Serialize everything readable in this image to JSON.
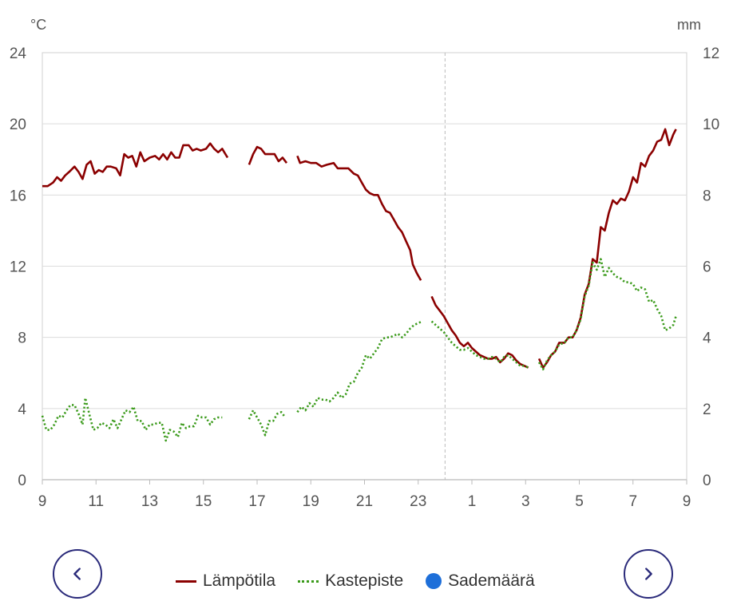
{
  "chart_data": {
    "type": "line",
    "y_left_unit": "°C",
    "y_right_unit": "mm",
    "ylim_left": [
      0,
      24
    ],
    "ylim_right": [
      0,
      12
    ],
    "yticks_left": [
      "0",
      "4",
      "8",
      "12",
      "16",
      "20",
      "24"
    ],
    "yticks_right": [
      "0",
      "2",
      "4",
      "6",
      "8",
      "10",
      "12"
    ],
    "xticks": [
      "9",
      "11",
      "13",
      "15",
      "17",
      "19",
      "21",
      "23",
      "1",
      "3",
      "5",
      "7",
      "9"
    ],
    "xlim": [
      9,
      33
    ],
    "grid": true,
    "legend_position": "bottom",
    "series": [
      {
        "name": "Lämpötila",
        "color": "#8b0000",
        "style": "solid",
        "points": [
          [
            9.0,
            16.5
          ],
          [
            9.2,
            16.5
          ],
          [
            9.4,
            16.7
          ],
          [
            9.55,
            17.0
          ],
          [
            9.7,
            16.8
          ],
          [
            9.85,
            17.1
          ],
          [
            10.0,
            17.3
          ],
          [
            10.2,
            17.6
          ],
          [
            10.35,
            17.3
          ],
          [
            10.5,
            16.9
          ],
          [
            10.65,
            17.7
          ],
          [
            10.8,
            17.9
          ],
          [
            10.95,
            17.2
          ],
          [
            11.1,
            17.4
          ],
          [
            11.25,
            17.3
          ],
          [
            11.4,
            17.6
          ],
          [
            11.55,
            17.6
          ],
          [
            11.75,
            17.5
          ],
          [
            11.9,
            17.1
          ],
          [
            12.05,
            18.3
          ],
          [
            12.2,
            18.1
          ],
          [
            12.35,
            18.2
          ],
          [
            12.5,
            17.6
          ],
          [
            12.65,
            18.4
          ],
          [
            12.8,
            17.9
          ],
          [
            13.0,
            18.1
          ],
          [
            13.2,
            18.2
          ],
          [
            13.35,
            18.0
          ],
          [
            13.5,
            18.3
          ],
          [
            13.65,
            18.0
          ],
          [
            13.8,
            18.4
          ],
          [
            13.95,
            18.1
          ],
          [
            14.1,
            18.1
          ],
          [
            14.25,
            18.8
          ],
          [
            14.45,
            18.8
          ],
          [
            14.6,
            18.5
          ],
          [
            14.75,
            18.6
          ],
          [
            14.9,
            18.5
          ],
          [
            15.1,
            18.6
          ],
          [
            15.25,
            18.9
          ],
          [
            15.4,
            18.6
          ],
          [
            15.55,
            18.4
          ],
          [
            15.7,
            18.6
          ],
          [
            15.9,
            18.1
          ],
          [
            null,
            null
          ],
          [
            16.7,
            17.7
          ],
          [
            16.85,
            18.3
          ],
          [
            17.0,
            18.7
          ],
          [
            17.15,
            18.6
          ],
          [
            17.3,
            18.3
          ],
          [
            17.5,
            18.3
          ],
          [
            17.65,
            18.3
          ],
          [
            17.8,
            17.9
          ],
          [
            17.95,
            18.1
          ],
          [
            18.1,
            17.8
          ],
          [
            null,
            null
          ],
          [
            18.5,
            18.2
          ],
          [
            18.6,
            17.8
          ],
          [
            18.8,
            17.9
          ],
          [
            19.0,
            17.8
          ],
          [
            19.2,
            17.8
          ],
          [
            19.4,
            17.6
          ],
          [
            19.6,
            17.7
          ],
          [
            19.85,
            17.8
          ],
          [
            20.0,
            17.5
          ],
          [
            20.2,
            17.5
          ],
          [
            20.4,
            17.5
          ],
          [
            20.6,
            17.2
          ],
          [
            20.75,
            17.1
          ],
          [
            20.9,
            16.7
          ],
          [
            21.05,
            16.3
          ],
          [
            21.2,
            16.1
          ],
          [
            21.35,
            16.0
          ],
          [
            21.5,
            16.0
          ],
          [
            21.65,
            15.5
          ],
          [
            21.8,
            15.1
          ],
          [
            21.95,
            15.0
          ],
          [
            22.1,
            14.6
          ],
          [
            22.25,
            14.2
          ],
          [
            22.4,
            13.9
          ],
          [
            22.55,
            13.4
          ],
          [
            22.7,
            12.9
          ],
          [
            22.8,
            12.1
          ],
          [
            22.95,
            11.6
          ],
          [
            23.1,
            11.2
          ],
          [
            null,
            null
          ],
          [
            23.5,
            10.3
          ],
          [
            23.65,
            9.8
          ],
          [
            23.8,
            9.5
          ],
          [
            23.95,
            9.2
          ],
          [
            24.1,
            8.8
          ],
          [
            24.25,
            8.4
          ],
          [
            24.4,
            8.1
          ],
          [
            24.55,
            7.7
          ],
          [
            24.7,
            7.5
          ],
          [
            24.85,
            7.7
          ],
          [
            25.0,
            7.4
          ],
          [
            25.15,
            7.2
          ],
          [
            25.3,
            7.0
          ],
          [
            25.45,
            6.9
          ],
          [
            25.6,
            6.8
          ],
          [
            25.75,
            6.8
          ],
          [
            25.9,
            6.9
          ],
          [
            26.05,
            6.6
          ],
          [
            26.2,
            6.8
          ],
          [
            26.35,
            7.1
          ],
          [
            26.5,
            7.0
          ],
          [
            26.65,
            6.7
          ],
          [
            26.8,
            6.5
          ],
          [
            26.95,
            6.4
          ],
          [
            27.1,
            6.3
          ],
          [
            null,
            null
          ],
          [
            27.5,
            6.8
          ],
          [
            27.65,
            6.3
          ],
          [
            27.8,
            6.6
          ],
          [
            27.95,
            7.0
          ],
          [
            28.1,
            7.2
          ],
          [
            28.25,
            7.7
          ],
          [
            28.45,
            7.7
          ],
          [
            28.6,
            8.0
          ],
          [
            28.75,
            8.0
          ],
          [
            28.9,
            8.4
          ],
          [
            29.05,
            9.1
          ],
          [
            29.2,
            10.4
          ],
          [
            29.35,
            11.0
          ],
          [
            29.5,
            12.4
          ],
          [
            29.65,
            12.2
          ],
          [
            29.8,
            14.2
          ],
          [
            29.95,
            14.0
          ],
          [
            30.1,
            15.0
          ],
          [
            30.25,
            15.7
          ],
          [
            30.4,
            15.5
          ],
          [
            30.55,
            15.8
          ],
          [
            30.7,
            15.7
          ],
          [
            30.85,
            16.2
          ],
          [
            31.0,
            17.0
          ],
          [
            31.15,
            16.7
          ],
          [
            31.3,
            17.8
          ],
          [
            31.45,
            17.6
          ],
          [
            31.6,
            18.2
          ],
          [
            31.75,
            18.5
          ],
          [
            31.9,
            19.0
          ],
          [
            32.05,
            19.1
          ],
          [
            32.2,
            19.7
          ],
          [
            32.35,
            18.8
          ],
          [
            32.5,
            19.4
          ],
          [
            32.6,
            19.7
          ]
        ]
      },
      {
        "name": "Kastepiste",
        "color": "#3a9a1a",
        "style": "dotted",
        "points": [
          [
            9.0,
            3.6
          ],
          [
            9.15,
            2.8
          ],
          [
            9.3,
            2.8
          ],
          [
            9.45,
            3.1
          ],
          [
            9.6,
            3.6
          ],
          [
            9.75,
            3.5
          ],
          [
            9.9,
            3.9
          ],
          [
            10.05,
            4.2
          ],
          [
            10.2,
            4.2
          ],
          [
            10.35,
            3.7
          ],
          [
            10.5,
            3.1
          ],
          [
            10.6,
            4.6
          ],
          [
            10.75,
            3.7
          ],
          [
            10.9,
            2.8
          ],
          [
            11.05,
            2.9
          ],
          [
            11.2,
            3.2
          ],
          [
            11.35,
            3.1
          ],
          [
            11.5,
            2.9
          ],
          [
            11.65,
            3.4
          ],
          [
            11.8,
            2.9
          ],
          [
            11.95,
            3.4
          ],
          [
            12.1,
            3.9
          ],
          [
            12.25,
            3.8
          ],
          [
            12.4,
            4.1
          ],
          [
            12.55,
            3.3
          ],
          [
            12.7,
            3.3
          ],
          [
            12.85,
            2.8
          ],
          [
            13.0,
            3.1
          ],
          [
            13.15,
            3.1
          ],
          [
            13.3,
            3.2
          ],
          [
            13.45,
            3.2
          ],
          [
            13.6,
            2.2
          ],
          [
            13.75,
            2.8
          ],
          [
            13.9,
            2.7
          ],
          [
            14.05,
            2.4
          ],
          [
            14.2,
            3.2
          ],
          [
            14.35,
            2.9
          ],
          [
            14.5,
            3.0
          ],
          [
            14.65,
            3.0
          ],
          [
            14.8,
            3.6
          ],
          [
            14.95,
            3.5
          ],
          [
            15.1,
            3.5
          ],
          [
            15.25,
            3.1
          ],
          [
            15.4,
            3.4
          ],
          [
            15.55,
            3.5
          ],
          [
            15.7,
            3.5
          ],
          [
            null,
            null
          ],
          [
            16.7,
            3.4
          ],
          [
            16.85,
            3.9
          ],
          [
            17.0,
            3.5
          ],
          [
            17.15,
            3.1
          ],
          [
            17.3,
            2.5
          ],
          [
            17.45,
            3.3
          ],
          [
            17.6,
            3.3
          ],
          [
            17.75,
            3.7
          ],
          [
            17.9,
            3.8
          ],
          [
            18.05,
            3.5
          ],
          [
            null,
            null
          ],
          [
            18.5,
            3.8
          ],
          [
            18.65,
            4.1
          ],
          [
            18.8,
            3.9
          ],
          [
            18.95,
            4.3
          ],
          [
            19.1,
            4.1
          ],
          [
            19.25,
            4.6
          ],
          [
            19.4,
            4.5
          ],
          [
            19.55,
            4.5
          ],
          [
            19.7,
            4.4
          ],
          [
            19.85,
            4.6
          ],
          [
            20.0,
            4.9
          ],
          [
            20.15,
            4.6
          ],
          [
            20.3,
            4.8
          ],
          [
            20.45,
            5.4
          ],
          [
            20.6,
            5.5
          ],
          [
            20.75,
            6.0
          ],
          [
            20.9,
            6.3
          ],
          [
            21.05,
            7.0
          ],
          [
            21.2,
            6.8
          ],
          [
            21.35,
            7.1
          ],
          [
            21.5,
            7.4
          ],
          [
            21.65,
            7.9
          ],
          [
            21.8,
            8.0
          ],
          [
            21.95,
            8.0
          ],
          [
            22.1,
            8.1
          ],
          [
            22.25,
            8.2
          ],
          [
            22.4,
            8.0
          ],
          [
            22.55,
            8.2
          ],
          [
            22.7,
            8.5
          ],
          [
            22.85,
            8.7
          ],
          [
            23.0,
            8.8
          ],
          [
            23.15,
            8.9
          ],
          [
            null,
            null
          ],
          [
            23.5,
            8.9
          ],
          [
            23.65,
            8.7
          ],
          [
            23.8,
            8.5
          ],
          [
            23.95,
            8.3
          ],
          [
            24.1,
            8.0
          ],
          [
            24.25,
            7.7
          ],
          [
            24.4,
            7.5
          ],
          [
            24.55,
            7.3
          ],
          [
            24.7,
            7.3
          ],
          [
            24.85,
            7.4
          ],
          [
            25.0,
            7.2
          ],
          [
            25.15,
            7.0
          ],
          [
            25.3,
            6.9
          ],
          [
            25.45,
            6.8
          ],
          [
            25.6,
            6.8
          ],
          [
            25.75,
            6.9
          ],
          [
            25.9,
            6.8
          ],
          [
            26.05,
            6.6
          ],
          [
            26.2,
            6.9
          ],
          [
            26.35,
            7.0
          ],
          [
            26.5,
            6.8
          ],
          [
            26.65,
            6.6
          ],
          [
            26.8,
            6.4
          ],
          [
            26.95,
            6.4
          ],
          [
            27.1,
            6.3
          ],
          [
            null,
            null
          ],
          [
            27.5,
            6.6
          ],
          [
            27.65,
            6.2
          ],
          [
            27.8,
            6.7
          ],
          [
            27.95,
            7.0
          ],
          [
            28.1,
            7.2
          ],
          [
            28.25,
            7.6
          ],
          [
            28.45,
            7.7
          ],
          [
            28.6,
            8.0
          ],
          [
            28.75,
            8.0
          ],
          [
            28.9,
            8.4
          ],
          [
            29.05,
            9.0
          ],
          [
            29.2,
            10.3
          ],
          [
            29.35,
            10.9
          ],
          [
            29.5,
            12.2
          ],
          [
            29.65,
            11.8
          ],
          [
            29.8,
            12.4
          ],
          [
            29.95,
            11.4
          ],
          [
            30.1,
            11.9
          ],
          [
            30.25,
            11.6
          ],
          [
            30.4,
            11.4
          ],
          [
            30.55,
            11.3
          ],
          [
            30.7,
            11.1
          ],
          [
            30.85,
            11.1
          ],
          [
            31.0,
            11.0
          ],
          [
            31.15,
            10.6
          ],
          [
            31.3,
            10.8
          ],
          [
            31.45,
            10.7
          ],
          [
            31.6,
            10.0
          ],
          [
            31.75,
            10.1
          ],
          [
            31.9,
            9.6
          ],
          [
            32.05,
            9.2
          ],
          [
            32.2,
            8.4
          ],
          [
            32.35,
            8.5
          ],
          [
            32.5,
            8.7
          ],
          [
            32.6,
            9.2
          ]
        ]
      }
    ],
    "extra_legend": [
      {
        "name": "Sademäärä",
        "color": "#1e6fd9"
      }
    ],
    "divider_x": 24
  },
  "nav": {
    "prev_icon": "chevron-left-icon",
    "next_icon": "chevron-right-icon"
  },
  "legend": {
    "temp_label": "Lämpötila",
    "dew_label": "Kastepiste",
    "rain_label": "Sademäärä"
  }
}
